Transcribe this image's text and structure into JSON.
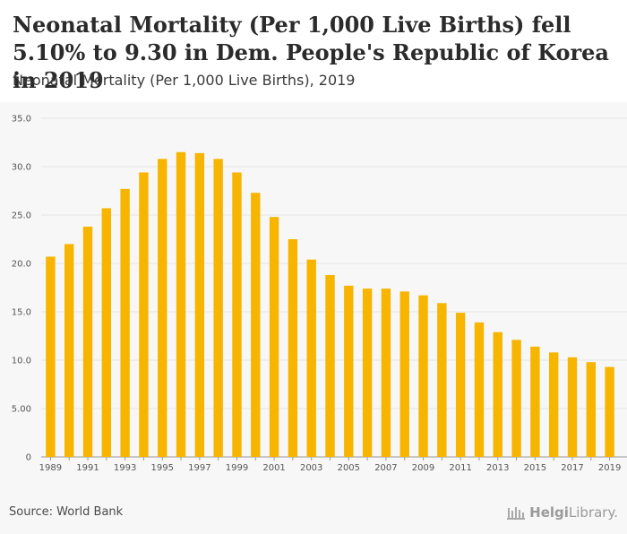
{
  "header": {
    "title": "Neonatal Mortality (Per 1,000 Live Births) fell 5.10% to 9.30 in Dem. People's Republic of Korea in 2019",
    "subtitle": "Neonatal Mortality (Per 1,000 Live Births), 2019"
  },
  "footer": {
    "source": "Source: World Bank",
    "logo_bold": "Helgi",
    "logo_light": "Library"
  },
  "colors": {
    "bar": "#f7b500",
    "grid": "#e6e6e6",
    "axis": "#9a9a9a"
  },
  "chart_data": {
    "type": "bar",
    "categories": [
      "1989",
      "1990",
      "1991",
      "1992",
      "1993",
      "1994",
      "1995",
      "1996",
      "1997",
      "1998",
      "1999",
      "2000",
      "2001",
      "2002",
      "2003",
      "2004",
      "2005",
      "2006",
      "2007",
      "2008",
      "2009",
      "2010",
      "2011",
      "2012",
      "2013",
      "2014",
      "2015",
      "2016",
      "2017",
      "2018",
      "2019"
    ],
    "x_tick_labels": [
      "1989",
      "1991",
      "1993",
      "1995",
      "1997",
      "1999",
      "2001",
      "2003",
      "2005",
      "2007",
      "2009",
      "2011",
      "2013",
      "2015",
      "2017",
      "2019"
    ],
    "values": [
      20.7,
      22.0,
      23.8,
      25.7,
      27.7,
      29.4,
      30.8,
      31.5,
      31.4,
      30.8,
      29.4,
      27.3,
      24.8,
      22.5,
      20.4,
      18.8,
      17.7,
      17.4,
      17.4,
      17.1,
      16.7,
      15.9,
      14.9,
      13.9,
      12.9,
      12.1,
      11.4,
      10.8,
      10.3,
      9.8,
      9.3
    ],
    "y_ticks": [
      0,
      5,
      10,
      15,
      20,
      25,
      30,
      35
    ],
    "y_tick_labels": [
      "0",
      "5.00",
      "10.0",
      "15.0",
      "20.0",
      "25.0",
      "30.0",
      "35.0"
    ],
    "ylim": [
      0,
      35
    ],
    "grid": true
  }
}
